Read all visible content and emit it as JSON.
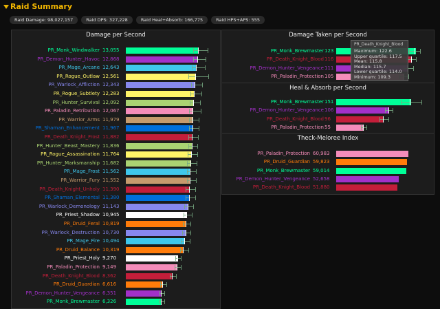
{
  "header": {
    "title": "Raid Summary"
  },
  "stats": [
    {
      "label": "Raid Damage: 98,027,157"
    },
    {
      "label": "Raid DPS: 327,228"
    },
    {
      "label": "Raid Heal+Absorb: 166,775"
    },
    {
      "label": "Raid HPS+APS: 555"
    }
  ],
  "dps_panel": {
    "title": "Damage per Second",
    "max": 15500,
    "rows": [
      {
        "name": "PR_Monk_Windwalker",
        "value": "13,055",
        "v": 13055,
        "color": "#00ff98",
        "err": [
          12100,
          14600
        ],
        "mean": 12900
      },
      {
        "name": "PR_Demon_Hunter_Havoc",
        "value": "12,868",
        "v": 12868,
        "color": "#a330c9",
        "err": [
          12000,
          14300
        ],
        "mean": 12750
      },
      {
        "name": "PR_Mage_Arcane",
        "value": "12,643",
        "v": 12643,
        "color": "#3fc7eb",
        "err": [
          11800,
          14100
        ],
        "mean": 12500
      },
      {
        "name": "PR_Rogue_Outlaw",
        "value": "12,561",
        "v": 12561,
        "color": "#fff468",
        "err": [
          11200,
          14800
        ],
        "mean": 12450
      },
      {
        "name": "PR_Warlock_Affliction",
        "value": "12,343",
        "v": 12343,
        "color": "#8788ee",
        "err": [
          11700,
          13600
        ],
        "mean": 12250
      },
      {
        "name": "PR_Rogue_Subtlety",
        "value": "12,283",
        "v": 12283,
        "color": "#fff468",
        "err": [
          11600,
          13500
        ],
        "mean": 12200
      },
      {
        "name": "PR_Hunter_Survival",
        "value": "12,092",
        "v": 12092,
        "color": "#aad372",
        "err": [
          11400,
          13300
        ],
        "mean": 12000
      },
      {
        "name": "PR_Paladin_Retribution",
        "value": "12,067",
        "v": 12067,
        "color": "#f48cba",
        "err": [
          11300,
          13400
        ],
        "mean": 11950
      },
      {
        "name": "PR_Warrior_Arms",
        "value": "11,979",
        "v": 11979,
        "color": "#c69b6d",
        "err": [
          11300,
          13000
        ],
        "mean": 11900
      },
      {
        "name": "PR_Shaman_Enhancement",
        "value": "11,967",
        "v": 11967,
        "color": "#0070dd",
        "err": [
          11300,
          13000
        ],
        "mean": 11880
      },
      {
        "name": "PR_Death_Knight_Frost",
        "value": "11,882",
        "v": 11882,
        "color": "#c41e3a",
        "err": [
          11200,
          12900
        ],
        "mean": 11800
      },
      {
        "name": "PR_Hunter_Beast_Mastery",
        "value": "11,836",
        "v": 11836,
        "color": "#aad372",
        "err": [
          11200,
          12800
        ],
        "mean": 11750
      },
      {
        "name": "PR_Rogue_Assassination",
        "value": "11,764",
        "v": 11764,
        "color": "#fff468",
        "err": [
          11100,
          12800
        ],
        "mean": 11680
      },
      {
        "name": "PR_Hunter_Marksmanship",
        "value": "11,682",
        "v": 11682,
        "color": "#aad372",
        "err": [
          11000,
          12700
        ],
        "mean": 11600
      },
      {
        "name": "PR_Mage_Frost",
        "value": "11,562",
        "v": 11562,
        "color": "#3fc7eb",
        "err": [
          10900,
          12500
        ],
        "mean": 11480
      },
      {
        "name": "PR_Warrior_Fury",
        "value": "11,552",
        "v": 11552,
        "color": "#c69b6d",
        "err": [
          10900,
          12500
        ],
        "mean": 11470
      },
      {
        "name": "PR_Death_Knight_Unholy",
        "value": "11,390",
        "v": 11390,
        "color": "#c41e3a",
        "err": [
          10700,
          12400
        ],
        "mean": 11300
      },
      {
        "name": "PR_Shaman_Elemental",
        "value": "11,380",
        "v": 11380,
        "color": "#0070dd",
        "err": [
          10700,
          12400
        ],
        "mean": 11290
      },
      {
        "name": "PR_Warlock_Demonology",
        "value": "11,143",
        "v": 11143,
        "color": "#8788ee",
        "err": [
          10500,
          12000
        ],
        "mean": 11060
      },
      {
        "name": "PR_Priest_Shadow",
        "value": "10,945",
        "v": 10945,
        "color": "#ffffff",
        "err": [
          10300,
          11800
        ],
        "mean": 10860
      },
      {
        "name": "PR_Druid_Feral",
        "value": "10,819",
        "v": 10819,
        "color": "#ff7c0a",
        "err": [
          10200,
          11600
        ],
        "mean": 10740
      },
      {
        "name": "PR_Warlock_Destruction",
        "value": "10,730",
        "v": 10730,
        "color": "#8788ee",
        "err": [
          10100,
          11600
        ],
        "mean": 10650
      },
      {
        "name": "PR_Mage_Fire",
        "value": "10,494",
        "v": 10494,
        "color": "#3fc7eb",
        "err": [
          9900,
          11400
        ],
        "mean": 10410
      },
      {
        "name": "PR_Druid_Balance",
        "value": "10,319",
        "v": 10319,
        "color": "#ff7c0a",
        "err": [
          9700,
          11200
        ],
        "mean": 10240
      },
      {
        "name": "PR_Priest_Holy",
        "value": "9,270",
        "v": 9270,
        "color": "#ffffff",
        "err": [
          8800,
          9900
        ],
        "mean": 9200
      },
      {
        "name": "PR_Paladin_Protection",
        "value": "9,149",
        "v": 9149,
        "color": "#f48cba",
        "err": [
          8700,
          9800
        ],
        "mean": 9080
      },
      {
        "name": "PR_Death_Knight_Blood",
        "value": "8,362",
        "v": 8362,
        "color": "#c41e3a",
        "err": [
          7900,
          9000
        ],
        "mean": 8300
      },
      {
        "name": "PR_Druid_Guardian",
        "value": "6,616",
        "v": 6616,
        "color": "#ff7c0a",
        "err": [
          6200,
          7200
        ],
        "mean": 6560
      },
      {
        "name": "PR_Demon_Hunter_Vengeance",
        "value": "6,351",
        "v": 6351,
        "color": "#a330c9",
        "err": [
          6000,
          6900
        ],
        "mean": 6300
      },
      {
        "name": "PR_Monk_Brewmaster",
        "value": "6,326",
        "v": 6326,
        "color": "#00ff98",
        "err": [
          5900,
          6900
        ],
        "mean": 6270
      }
    ]
  },
  "dtps_panel": {
    "title": "Damage Taken per Second",
    "max": 134,
    "rows": [
      {
        "name": "PR_Monk_Brewmaster",
        "value": "123",
        "v": 123,
        "color": "#00ff98",
        "err": [
          113,
          130
        ],
        "mean": 121
      },
      {
        "name": "PR_Death_Knight_Blood",
        "value": "116",
        "v": 116,
        "color": "#c41e3a",
        "err": [
          109,
          123
        ],
        "mean": 115.8
      },
      {
        "name": "PR_Demon_Hunter_Vengeance",
        "value": "111",
        "v": 111,
        "color": "#a330c9",
        "err": [
          104,
          119
        ],
        "mean": 110
      },
      {
        "name": "PR_Paladin_Protection",
        "value": "105",
        "v": 105,
        "color": "#f48cba",
        "err": [
          98,
          112
        ],
        "mean": 104
      }
    ]
  },
  "tooltip": {
    "title": "PR_Death_Knight_Blood",
    "lines": [
      "Maximum: 122.6",
      "Upper quartile: 117.5",
      "Mean: 115.8",
      "Median: 115.7",
      "Lower quartile: 114.0",
      "Minimum: 109.3"
    ]
  },
  "hps_panel": {
    "title": "Heal & Absorb per Second",
    "max": 175,
    "rows": [
      {
        "name": "PR_Monk_Brewmaster",
        "value": "151",
        "v": 151,
        "color": "#00ff98",
        "err": [
          130,
          172
        ],
        "mean": 149
      },
      {
        "name": "PR_Demon_Hunter_Vengeance",
        "value": "106",
        "v": 106,
        "color": "#a330c9",
        "err": [
          98,
          114
        ],
        "mean": 105
      },
      {
        "name": "PR_Death_Knight_Blood",
        "value": "96",
        "v": 96,
        "color": "#c41e3a",
        "err": [
          88,
          105
        ],
        "mean": 95
      },
      {
        "name": "PR_Paladin_Protection",
        "value": "55",
        "v": 55,
        "color": "#f48cba",
        "err": [
          50,
          61
        ],
        "mean": 54
      }
    ]
  },
  "tmi_panel": {
    "title": "Theck-Meloree Index",
    "max": 61500,
    "rows": [
      {
        "name": "PR_Paladin_Protection",
        "value": "60,983",
        "v": 60983,
        "color": "#f48cba"
      },
      {
        "name": "PR_Druid_Guardian",
        "value": "59,823",
        "v": 59823,
        "color": "#ff7c0a"
      },
      {
        "name": "PR_Monk_Brewmaster",
        "value": "59,014",
        "v": 59014,
        "color": "#00ff98"
      },
      {
        "name": "PR_Demon_Hunter_Vengeance",
        "value": "52,658",
        "v": 52658,
        "color": "#a330c9"
      },
      {
        "name": "PR_Death_Knight_Blood",
        "value": "51,880",
        "v": 51880,
        "color": "#c41e3a"
      }
    ]
  }
}
